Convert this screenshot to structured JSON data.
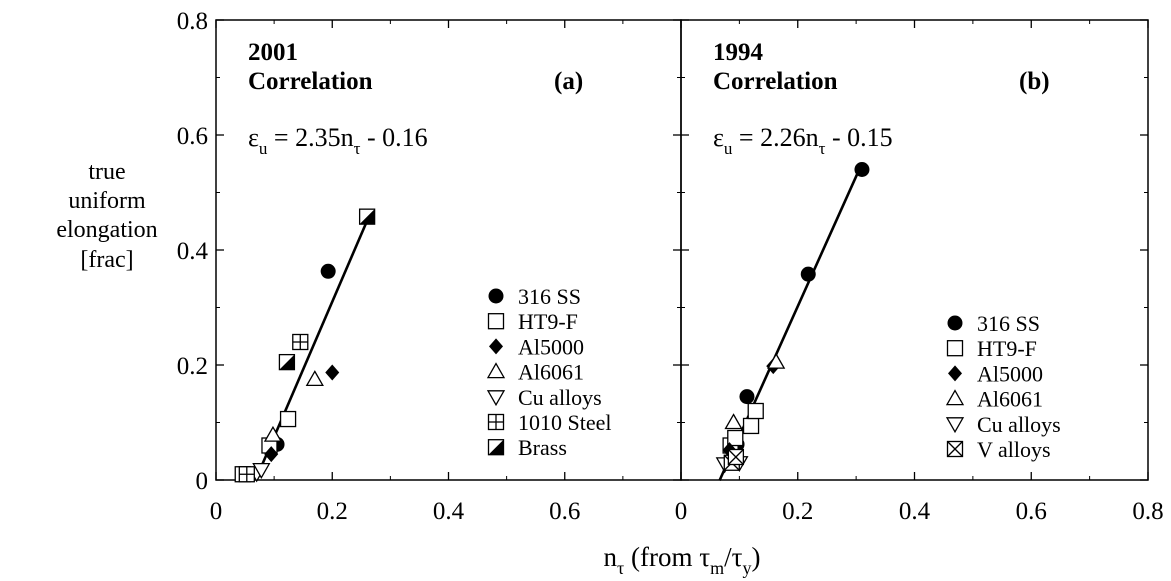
{
  "figure": {
    "ylabel_lines": [
      "true",
      "uniform",
      "elongation",
      "[frac]"
    ],
    "xlabel": {
      "n": "n",
      "n_sub": "τ",
      "from_open": " (from τ",
      "tm_sub": "m",
      "slash_tau": "/τ",
      "ty_sub": "y",
      "close": ")"
    }
  },
  "chart_data": [
    {
      "type": "scatter",
      "panel_label": "(a)",
      "title_lines": [
        "2001",
        "Correlation"
      ],
      "equation": {
        "eps": "ε",
        "eps_sub": "u",
        "mid": " = 2.35n",
        "n_sub": "τ",
        "tail": " - 0.16"
      },
      "xlim": [
        0,
        0.8
      ],
      "ylim": [
        0,
        0.8
      ],
      "xticks": [
        "0",
        "0.2",
        "0.4",
        "0.6"
      ],
      "yticks": [
        "0",
        "0.2",
        "0.4",
        "0.6",
        "0.8"
      ],
      "xtick_values": [
        0,
        0.2,
        0.4,
        0.6
      ],
      "ytick_values": [
        0,
        0.2,
        0.4,
        0.6,
        0.8
      ],
      "fit_line": {
        "slope": 2.35,
        "intercept": -0.16,
        "x_range": [
          0.068,
          0.262
        ]
      },
      "series": [
        {
          "name": "316 SS",
          "marker": "filled-circle",
          "points": [
            [
              0.105,
              0.062
            ],
            [
              0.193,
              0.363
            ]
          ]
        },
        {
          "name": "HT9-F",
          "marker": "open-square",
          "points": [
            [
              0.046,
              0.01
            ],
            [
              0.092,
              0.06
            ],
            [
              0.124,
              0.106
            ]
          ]
        },
        {
          "name": "Al5000",
          "marker": "filled-diamond",
          "points": [
            [
              0.095,
              0.045
            ],
            [
              0.2,
              0.187
            ]
          ]
        },
        {
          "name": "Al6061",
          "marker": "open-triangle-up",
          "points": [
            [
              0.098,
              0.078
            ],
            [
              0.17,
              0.175
            ]
          ]
        },
        {
          "name": "Cu alloys",
          "marker": "open-triangle-down",
          "points": [
            [
              0.07,
              0.012
            ],
            [
              0.078,
              0.018
            ]
          ]
        },
        {
          "name": "1010 Steel",
          "marker": "boxed-plus",
          "points": [
            [
              0.053,
              0.01
            ],
            [
              0.145,
              0.24
            ]
          ]
        },
        {
          "name": "Brass",
          "marker": "half-filled-square",
          "points": [
            [
              0.122,
              0.205
            ],
            [
              0.26,
              0.458
            ]
          ]
        }
      ]
    },
    {
      "type": "scatter",
      "panel_label": "(b)",
      "title_lines": [
        "1994",
        "Correlation"
      ],
      "equation": {
        "eps": "ε",
        "eps_sub": "u",
        "mid": " = 2.26n",
        "n_sub": "τ",
        "tail": " - 0.15"
      },
      "xlim": [
        0,
        0.8
      ],
      "ylim": [
        0,
        0.8
      ],
      "xticks": [
        "0",
        "0.2",
        "0.4",
        "0.6",
        "0.8"
      ],
      "xtick_values": [
        0,
        0.2,
        0.4,
        0.6,
        0.8
      ],
      "ytick_values": [
        0,
        0.2,
        0.4,
        0.6,
        0.8
      ],
      "fit_line": {
        "slope": 2.26,
        "intercept": -0.15,
        "x_range": [
          0.066,
          0.31
        ]
      },
      "series": [
        {
          "name": "316 SS",
          "marker": "filled-circle",
          "points": [
            [
              0.096,
              0.062
            ],
            [
              0.113,
              0.145
            ],
            [
              0.218,
              0.358
            ],
            [
              0.31,
              0.54
            ]
          ]
        },
        {
          "name": "HT9-F",
          "marker": "open-square",
          "points": [
            [
              0.085,
              0.06
            ],
            [
              0.093,
              0.073
            ],
            [
              0.12,
              0.094
            ],
            [
              0.128,
              0.12
            ]
          ]
        },
        {
          "name": "Al5000",
          "marker": "filled-diamond",
          "points": [
            [
              0.083,
              0.052
            ],
            [
              0.158,
              0.198
            ]
          ]
        },
        {
          "name": "Al6061",
          "marker": "open-triangle-up",
          "points": [
            [
              0.09,
              0.1
            ],
            [
              0.163,
              0.205
            ]
          ]
        },
        {
          "name": "Cu alloys",
          "marker": "open-triangle-down",
          "points": [
            [
              0.075,
              0.028
            ],
            [
              0.1,
              0.03
            ]
          ]
        },
        {
          "name": "V alloys",
          "marker": "boxed-x",
          "points": [
            [
              0.087,
              0.03
            ],
            [
              0.094,
              0.04
            ]
          ]
        }
      ]
    }
  ]
}
